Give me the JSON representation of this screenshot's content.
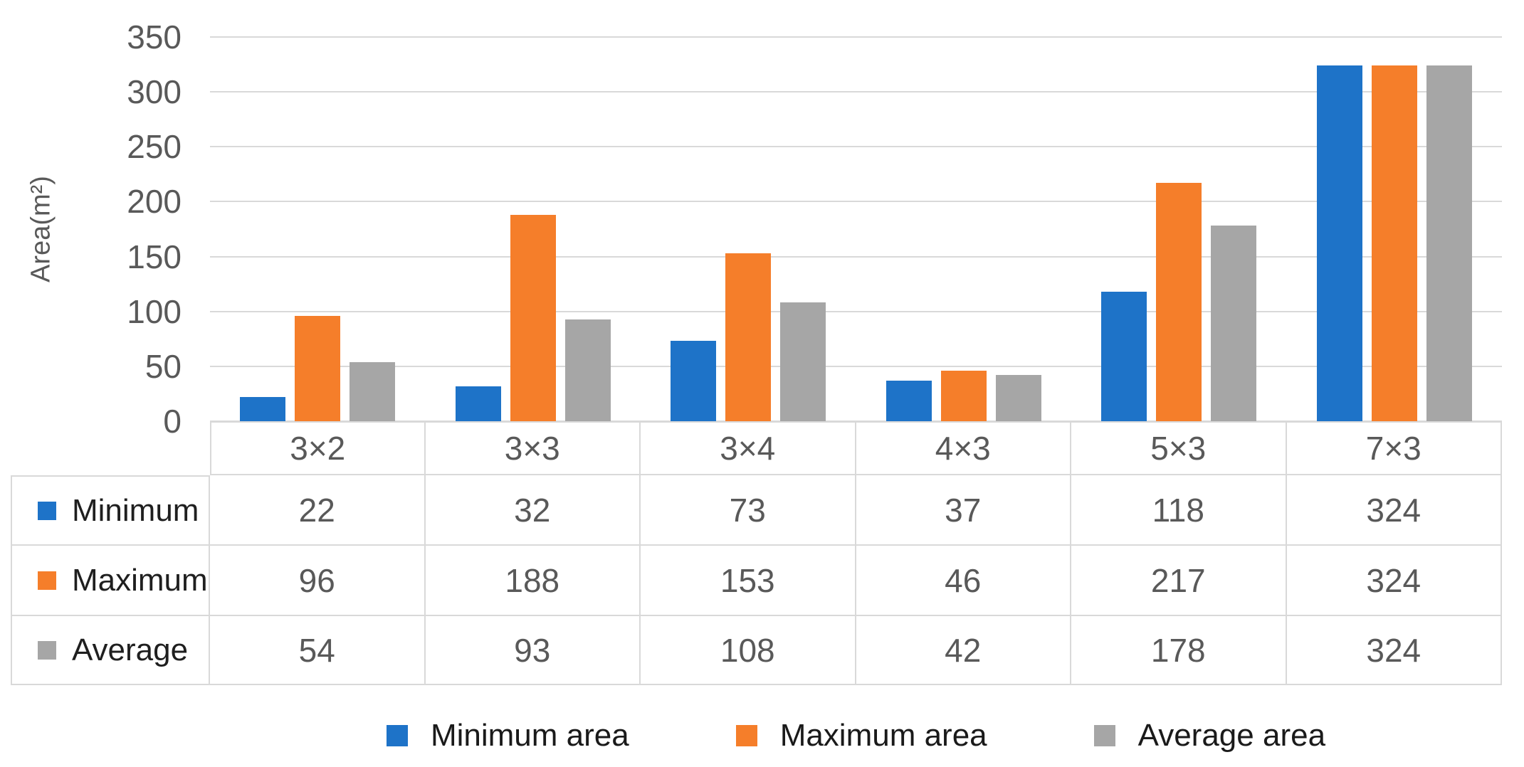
{
  "chart_data": {
    "type": "bar",
    "title": "",
    "ylabel": "Area(m²)",
    "xlabel": "",
    "categories": [
      "3×2",
      "3×3",
      "3×4",
      "4×3",
      "5×3",
      "7×3"
    ],
    "series": [
      {
        "name": "Minimum",
        "legend_label": "Minimum area",
        "color": "#1e73c8",
        "values": [
          22,
          32,
          73,
          37,
          118,
          324
        ]
      },
      {
        "name": "Maximum",
        "legend_label": "Maximum area",
        "color": "#f57e2a",
        "values": [
          96,
          188,
          153,
          46,
          217,
          324
        ]
      },
      {
        "name": "Average",
        "legend_label": "Average area",
        "color": "#a6a6a6",
        "values": [
          54,
          93,
          108,
          42,
          178,
          324
        ]
      }
    ],
    "ylim": [
      0,
      350
    ],
    "ytick_step": 50,
    "yticks": [
      0,
      50,
      100,
      150,
      200,
      250,
      300,
      350
    ],
    "grid": true,
    "gridline_color": "#d9d9d9",
    "legend_position": "bottom",
    "data_table_shown": true
  }
}
